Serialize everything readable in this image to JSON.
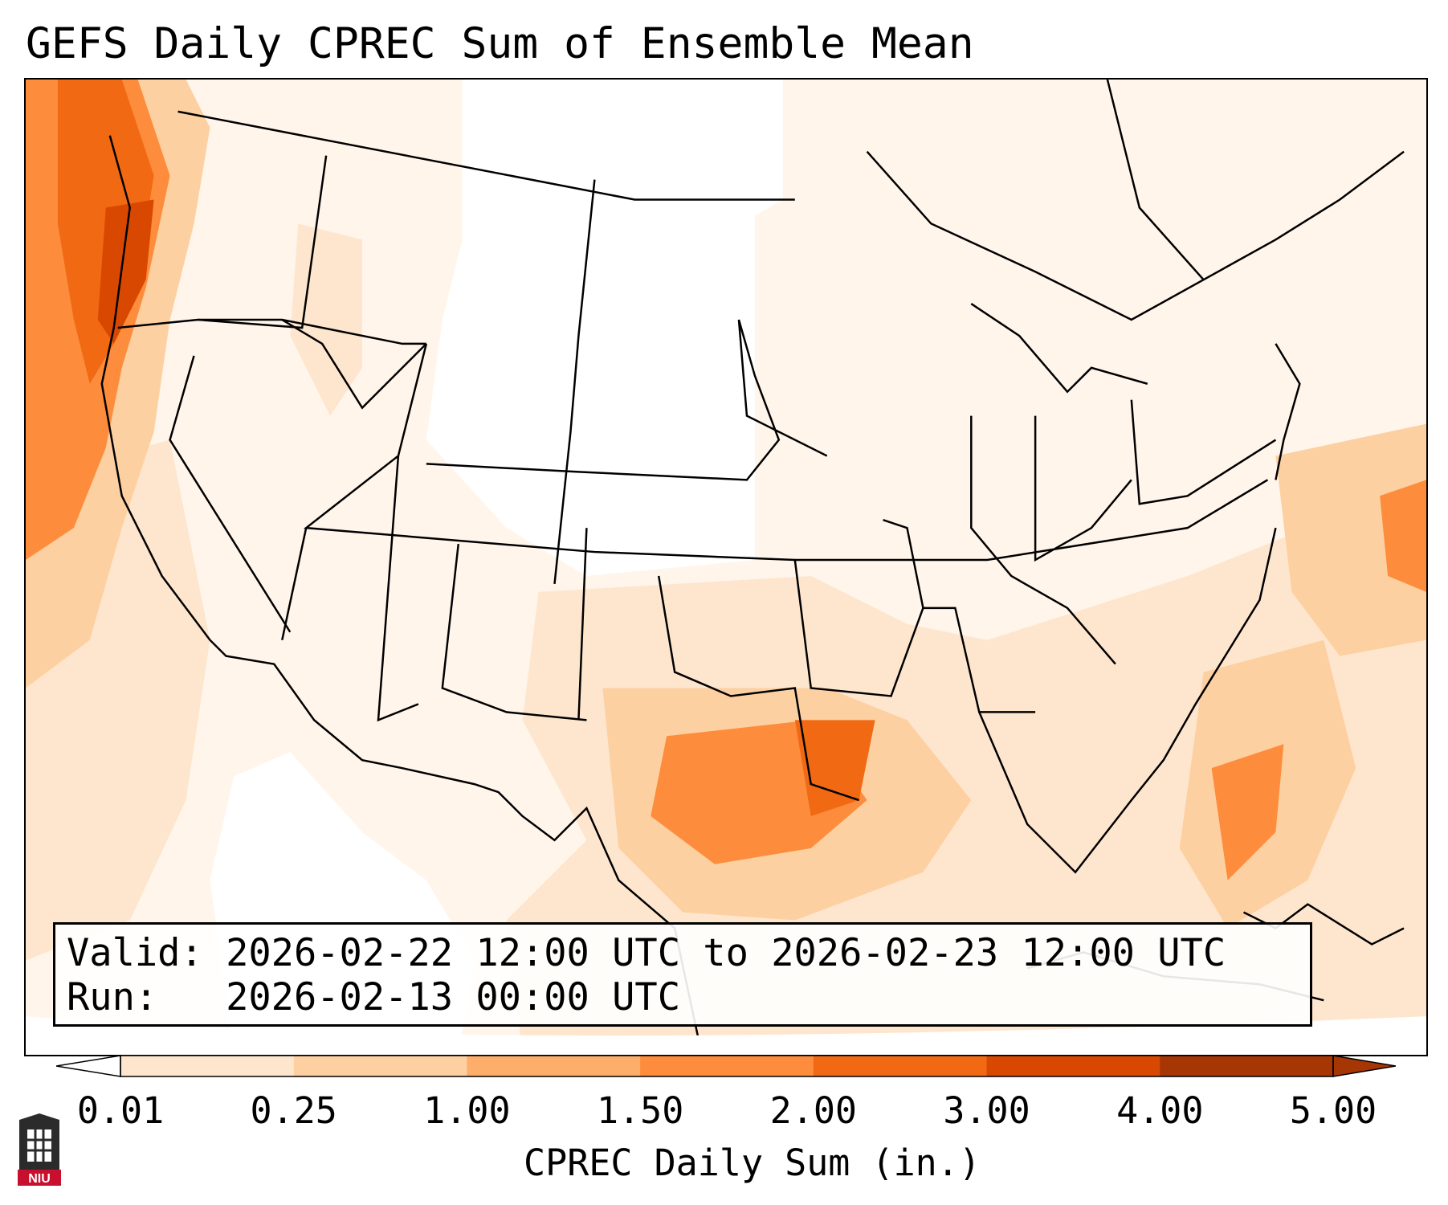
{
  "title": "GEFS Daily CPREC Sum of Ensemble Mean",
  "info": {
    "valid_label": "Valid:",
    "valid_value": "2026-02-22 12:00 UTC to 2026-02-23 12:00 UTC",
    "run_label": "Run:",
    "run_value": "2026-02-13 00:00 UTC"
  },
  "colorbar": {
    "label": "CPREC Daily Sum (in.)",
    "ticks": [
      "0.01",
      "0.25",
      "1.00",
      "1.50",
      "2.00",
      "3.00",
      "4.00",
      "5.00"
    ],
    "colors": [
      "#fff5eb",
      "#fee6ce",
      "#fdd0a2",
      "#fdae6b",
      "#fd8d3c",
      "#f16913",
      "#d94801",
      "#a63603"
    ],
    "under_color": "#ffffff",
    "over_color": "#a63603",
    "extend": "both"
  },
  "logo": {
    "text": "NIU"
  }
}
